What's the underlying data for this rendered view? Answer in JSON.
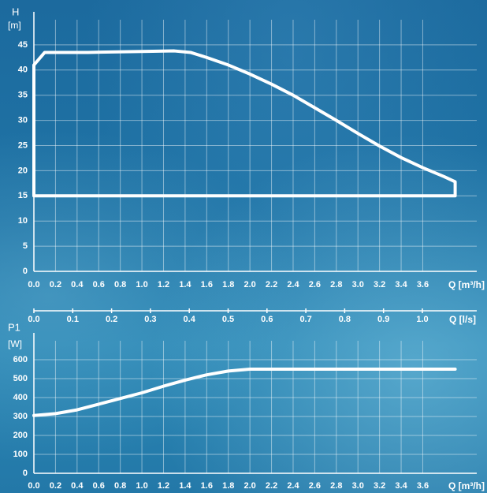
{
  "chart_data": [
    {
      "type": "line",
      "ylabel": "H",
      "yunit": "[m]",
      "xlabel": "Q [m³/h]",
      "xlim": [
        0,
        4.1
      ],
      "ylim": [
        0,
        50
      ],
      "xticks": [
        {
          "value": 0,
          "label": "0.0"
        },
        0.2,
        0.4,
        0.6,
        0.8,
        {
          "value": 1,
          "label": "1.0"
        },
        1.2,
        1.4,
        1.6,
        1.8,
        {
          "value": 2,
          "label": "2.0"
        },
        2.2,
        2.4,
        2.6,
        2.8,
        {
          "value": 3,
          "label": "3.0"
        },
        3.2,
        3.4,
        3.6
      ],
      "yticks": [
        0,
        5,
        10,
        15,
        20,
        25,
        30,
        35,
        40,
        45
      ],
      "x2label": "Q [l/s]",
      "x2lim": [
        0,
        1.14
      ],
      "x2ticks": [
        {
          "value": 0,
          "label": "0.0"
        },
        0.1,
        0.2,
        0.3,
        0.4,
        0.5,
        0.6,
        0.7,
        0.8,
        0.9,
        {
          "value": 1,
          "label": "1.0"
        }
      ],
      "grid": true,
      "series": [
        {
          "color": "#ffffff",
          "x": [
            0,
            0,
            0.1,
            0.5,
            1.0,
            1.3,
            1.45,
            1.6,
            1.8,
            2.0,
            2.2,
            2.4,
            2.6,
            2.8,
            3.0,
            3.2,
            3.4,
            3.6,
            3.8,
            3.9,
            3.9,
            0
          ],
          "values": [
            15,
            41,
            43.5,
            43.5,
            43.7,
            43.8,
            43.5,
            42.5,
            41,
            39.2,
            37.2,
            35,
            32.5,
            30,
            27.4,
            24.9,
            22.6,
            20.6,
            18.8,
            17.8,
            15,
            15
          ]
        }
      ]
    },
    {
      "type": "line",
      "ylabel": "P1",
      "yunit": "[W]",
      "xlabel": "Q [m³/h]",
      "xlim": [
        0,
        4.1
      ],
      "ylim": [
        0,
        700
      ],
      "xticks": [
        {
          "value": 0,
          "label": "0.0"
        },
        0.2,
        0.4,
        0.6,
        0.8,
        {
          "value": 1,
          "label": "1.0"
        },
        1.2,
        1.4,
        1.6,
        1.8,
        {
          "value": 2,
          "label": "2.0"
        },
        2.2,
        2.4,
        2.6,
        2.8,
        {
          "value": 3,
          "label": "3.0"
        },
        3.2,
        3.4,
        3.6
      ],
      "yticks": [
        0,
        100,
        200,
        300,
        400,
        500,
        600
      ],
      "grid": true,
      "series": [
        {
          "color": "#ffffff",
          "x": [
            0,
            0.2,
            0.4,
            0.6,
            0.8,
            1.0,
            1.2,
            1.4,
            1.6,
            1.8,
            2.0,
            3.9
          ],
          "values": [
            305,
            315,
            335,
            365,
            395,
            425,
            460,
            492,
            520,
            540,
            550,
            550
          ]
        }
      ]
    }
  ]
}
